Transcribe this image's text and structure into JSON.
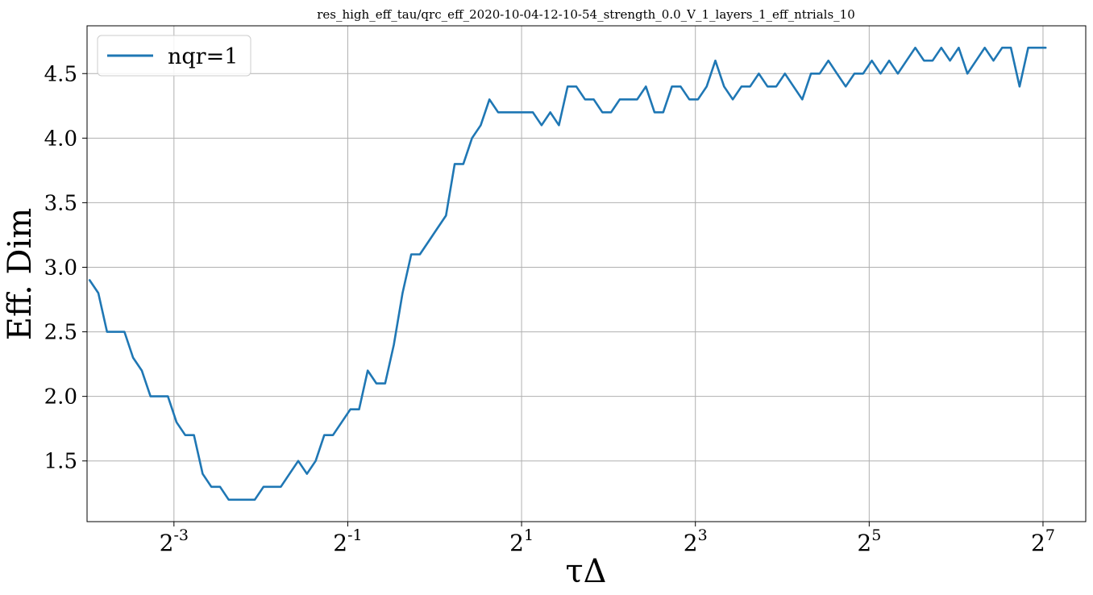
{
  "chart_data": {
    "type": "line",
    "title": "res_high_eff_tau/qrc_eff_2020-10-04-12-10-54_strength_0.0_V_1_layers_1_eff_ntrials_10",
    "xlabel": "τΔ",
    "ylabel": "Eff. Dim",
    "x_scale": "log2",
    "xlim": [
      0.0625,
      180
    ],
    "ylim": [
      1.03,
      4.87
    ],
    "x_ticks": [
      0.125,
      0.5,
      2,
      8,
      32,
      128
    ],
    "x_tick_labels": [
      {
        "base": "2",
        "exp": "-3"
      },
      {
        "base": "2",
        "exp": "-1"
      },
      {
        "base": "2",
        "exp": "1"
      },
      {
        "base": "2",
        "exp": "3"
      },
      {
        "base": "2",
        "exp": "5"
      },
      {
        "base": "2",
        "exp": "7"
      }
    ],
    "y_ticks": [
      1.5,
      2.0,
      2.5,
      3.0,
      3.5,
      4.0,
      4.5
    ],
    "y_tick_labels": [
      "1.5",
      "2.0",
      "2.5",
      "3.0",
      "3.5",
      "4.0",
      "4.5"
    ],
    "grid": true,
    "legend": {
      "placement": "top-left",
      "entries": [
        "nqr=1"
      ]
    },
    "series": [
      {
        "name": "nqr=1",
        "color": "#1f77b4",
        "log2_x_start": -3.97,
        "log2_x_step": 0.1,
        "values": [
          2.9,
          2.8,
          2.5,
          2.5,
          2.5,
          2.3,
          2.2,
          2.0,
          2.0,
          2.0,
          1.8,
          1.7,
          1.7,
          1.4,
          1.3,
          1.3,
          1.2,
          1.2,
          1.2,
          1.2,
          1.3,
          1.3,
          1.3,
          1.4,
          1.5,
          1.4,
          1.5,
          1.7,
          1.7,
          1.8,
          1.9,
          1.9,
          2.2,
          2.1,
          2.1,
          2.4,
          2.8,
          3.1,
          3.1,
          3.2,
          3.3,
          3.4,
          3.8,
          3.8,
          4.0,
          4.1,
          4.3,
          4.2,
          4.2,
          4.2,
          4.2,
          4.2,
          4.1,
          4.2,
          4.1,
          4.4,
          4.4,
          4.3,
          4.3,
          4.2,
          4.2,
          4.3,
          4.3,
          4.3,
          4.4,
          4.2,
          4.2,
          4.4,
          4.4,
          4.3,
          4.3,
          4.4,
          4.6,
          4.4,
          4.3,
          4.4,
          4.4,
          4.5,
          4.4,
          4.4,
          4.5,
          4.4,
          4.3,
          4.5,
          4.5,
          4.6,
          4.5,
          4.4,
          4.5,
          4.5,
          4.6,
          4.5,
          4.6,
          4.5,
          4.6,
          4.7,
          4.6,
          4.6,
          4.7,
          4.6,
          4.7,
          4.5,
          4.6,
          4.7,
          4.6,
          4.7,
          4.7,
          4.4,
          4.7,
          4.7,
          4.7
        ]
      }
    ]
  }
}
